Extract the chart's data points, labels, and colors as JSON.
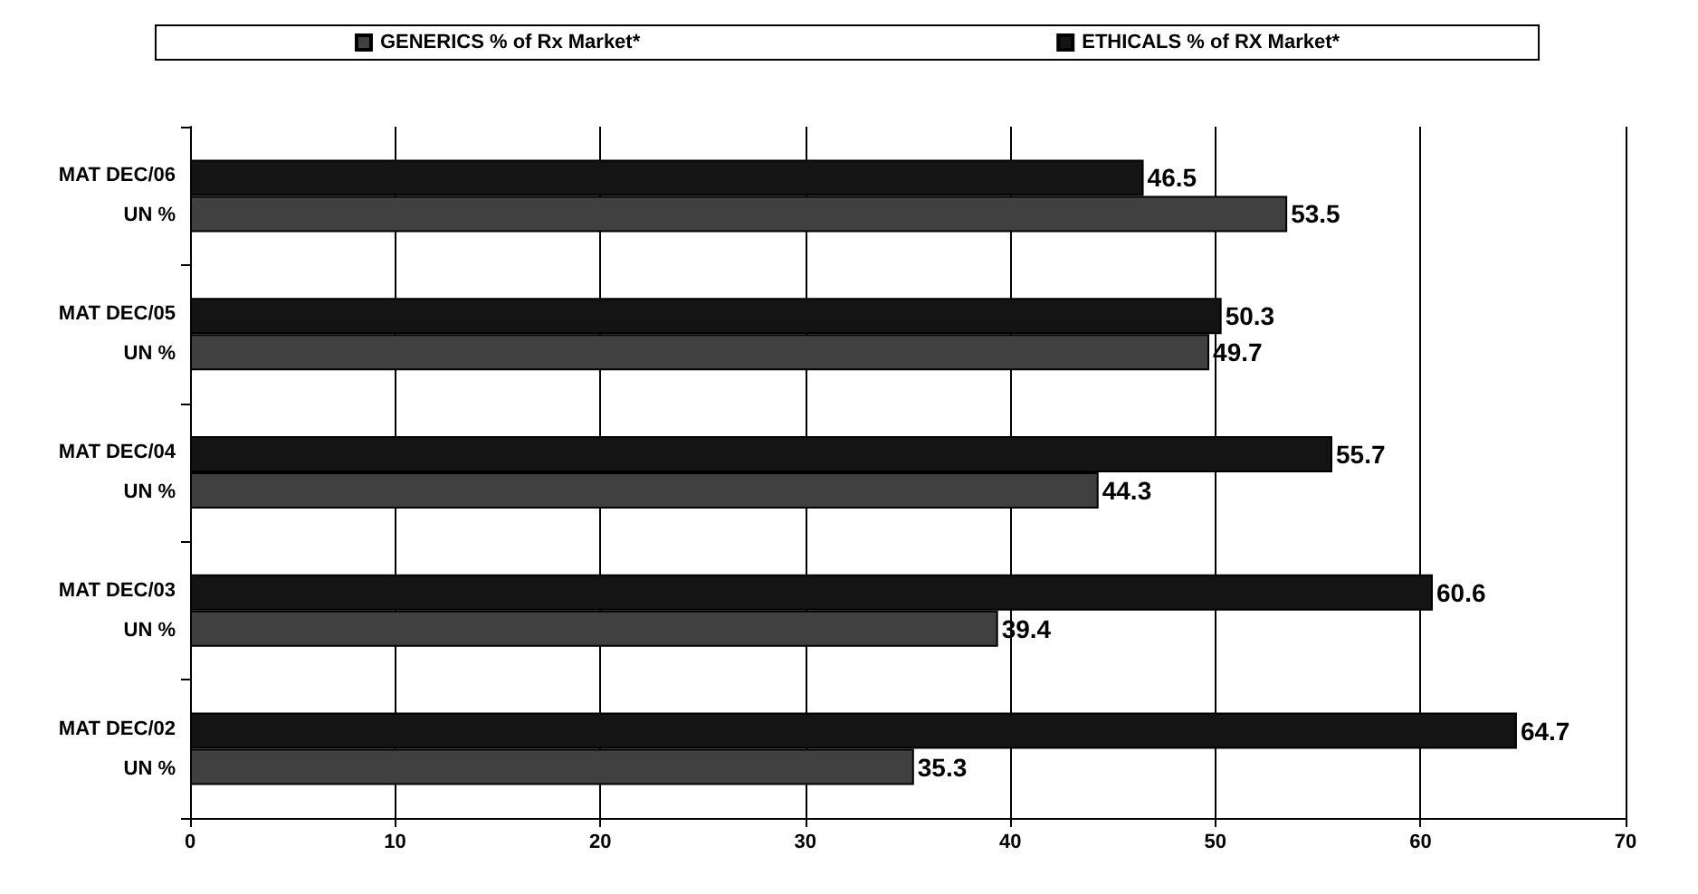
{
  "chart_data": {
    "type": "bar",
    "orientation": "horizontal",
    "categories": [
      "MAT DEC/06\nUN %",
      "MAT DEC/05\nUN %",
      "MAT DEC/04\nUN %",
      "MAT DEC/03\nUN %",
      "MAT DEC/02\nUN %"
    ],
    "series": [
      {
        "name": "GENERICS % of Rx Market*",
        "color": "#404040",
        "values": [
          53.5,
          49.7,
          44.3,
          39.4,
          35.3
        ]
      },
      {
        "name": "ETHICALS % of RX Market*",
        "color": "#141414",
        "values": [
          46.5,
          50.3,
          55.7,
          60.6,
          64.7
        ]
      }
    ],
    "xlim": [
      0,
      70
    ],
    "xticks": [
      0,
      10,
      20,
      30,
      40,
      50,
      60,
      70
    ],
    "grid": "x",
    "legend": "top",
    "data_labels": true
  }
}
